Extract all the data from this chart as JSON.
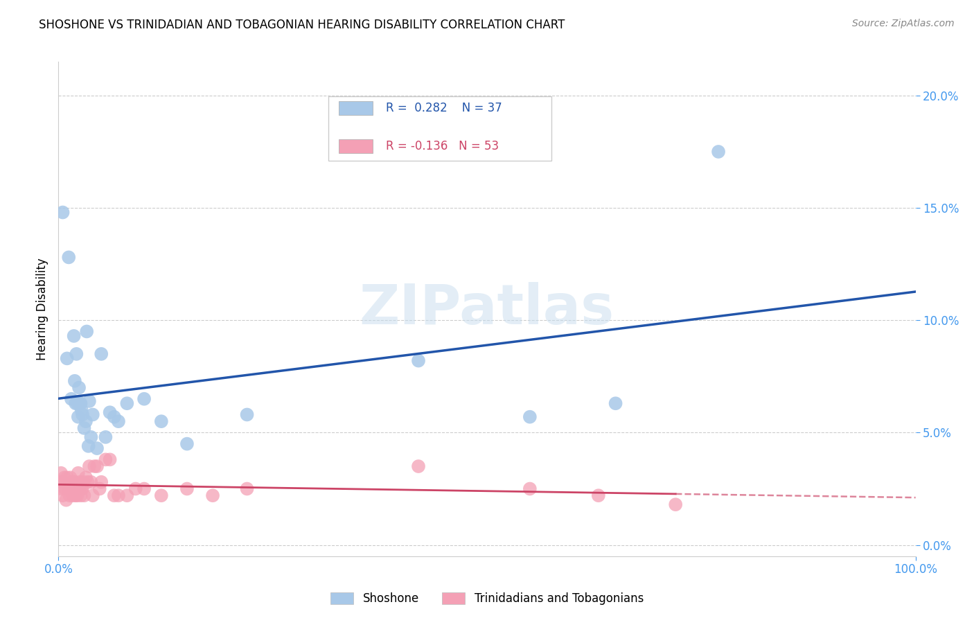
{
  "title": "SHOSHONE VS TRINIDADIAN AND TOBAGONIAN HEARING DISABILITY CORRELATION CHART",
  "source": "Source: ZipAtlas.com",
  "xlabel": "",
  "ylabel": "Hearing Disability",
  "xlim": [
    0,
    1.0
  ],
  "ylim": [
    -0.005,
    0.215
  ],
  "xtick_left": 0.0,
  "xtick_right": 1.0,
  "xtick_left_label": "0.0%",
  "xtick_right_label": "100.0%",
  "yticks": [
    0.0,
    0.05,
    0.1,
    0.15,
    0.2
  ],
  "yticklabels": [
    "0.0%",
    "5.0%",
    "10.0%",
    "15.0%",
    "20.0%"
  ],
  "blue_R": 0.282,
  "blue_N": 37,
  "pink_R": -0.136,
  "pink_N": 53,
  "blue_color": "#A8C8E8",
  "pink_color": "#F4A0B5",
  "blue_line_color": "#2255AA",
  "pink_line_color": "#CC4466",
  "tick_color": "#4499EE",
  "watermark_text": "ZIPatlas",
  "legend_labels": [
    "Shoshone",
    "Trinidadians and Tobagonians"
  ],
  "blue_scatter_x": [
    0.005,
    0.01,
    0.012,
    0.015,
    0.018,
    0.019,
    0.02,
    0.021,
    0.022,
    0.023,
    0.024,
    0.025,
    0.026,
    0.027,
    0.028,
    0.03,
    0.032,
    0.033,
    0.035,
    0.036,
    0.038,
    0.04,
    0.045,
    0.05,
    0.055,
    0.06,
    0.065,
    0.07,
    0.08,
    0.1,
    0.12,
    0.15,
    0.22,
    0.42,
    0.55,
    0.65,
    0.77
  ],
  "blue_scatter_y": [
    0.148,
    0.083,
    0.128,
    0.065,
    0.093,
    0.073,
    0.063,
    0.085,
    0.063,
    0.057,
    0.07,
    0.063,
    0.063,
    0.06,
    0.058,
    0.052,
    0.055,
    0.095,
    0.044,
    0.064,
    0.048,
    0.058,
    0.043,
    0.085,
    0.048,
    0.059,
    0.057,
    0.055,
    0.063,
    0.065,
    0.055,
    0.045,
    0.058,
    0.082,
    0.057,
    0.063,
    0.175
  ],
  "pink_scatter_x": [
    0.002,
    0.003,
    0.004,
    0.005,
    0.006,
    0.007,
    0.008,
    0.009,
    0.01,
    0.011,
    0.012,
    0.013,
    0.014,
    0.015,
    0.016,
    0.017,
    0.018,
    0.019,
    0.02,
    0.021,
    0.022,
    0.023,
    0.024,
    0.025,
    0.026,
    0.027,
    0.028,
    0.029,
    0.03,
    0.032,
    0.034,
    0.036,
    0.038,
    0.04,
    0.042,
    0.045,
    0.048,
    0.05,
    0.055,
    0.06,
    0.065,
    0.07,
    0.08,
    0.09,
    0.1,
    0.12,
    0.15,
    0.18,
    0.22,
    0.42,
    0.55,
    0.63,
    0.72
  ],
  "pink_scatter_y": [
    0.028,
    0.032,
    0.025,
    0.022,
    0.028,
    0.03,
    0.025,
    0.02,
    0.03,
    0.027,
    0.025,
    0.022,
    0.03,
    0.025,
    0.028,
    0.022,
    0.025,
    0.028,
    0.022,
    0.025,
    0.022,
    0.032,
    0.025,
    0.028,
    0.022,
    0.025,
    0.025,
    0.028,
    0.022,
    0.03,
    0.028,
    0.035,
    0.028,
    0.022,
    0.035,
    0.035,
    0.025,
    0.028,
    0.038,
    0.038,
    0.022,
    0.022,
    0.022,
    0.025,
    0.025,
    0.022,
    0.025,
    0.022,
    0.025,
    0.035,
    0.025,
    0.022,
    0.018
  ]
}
